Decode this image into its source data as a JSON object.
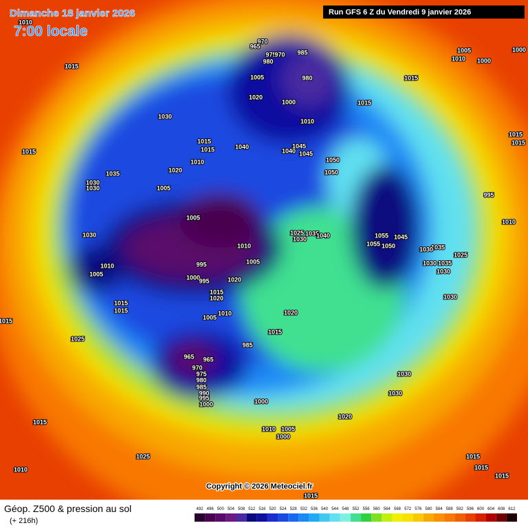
{
  "header": {
    "date": "Dimanche 18 janvier 2026",
    "time": "7:00 locale",
    "run": "Run GFS 6 Z du Vendredi 9 janvier 2026"
  },
  "map": {
    "copyright": "Copyright © 2026 Meteociel.fr",
    "isobar_labels": [
      "1010",
      "1015",
      "1030",
      "1015",
      "1035",
      "1030",
      "1030",
      "1020",
      "1005",
      "1015",
      "1015",
      "1010",
      "970",
      "965",
      "975",
      "970",
      "980",
      "985",
      "1005",
      "980",
      "1020",
      "1000",
      "1010",
      "1015",
      "1015",
      "1005",
      "1010",
      "1000",
      "1000",
      "1040",
      "1040",
      "1045",
      "1045",
      "1050",
      "1050",
      "1005",
      "1010",
      "1005",
      "995",
      "1000",
      "995",
      "1020",
      "1015",
      "1020",
      "1030",
      "1010",
      "1005",
      "1015",
      "1015",
      "1005",
      "1010",
      "1020",
      "1015",
      "1025",
      "985",
      "965",
      "965",
      "970",
      "975",
      "980",
      "985",
      "990",
      "995",
      "1000",
      "1000",
      "1010",
      "1005",
      "1000",
      "1020",
      "1030",
      "1030",
      "1025",
      "1015",
      "1010",
      "1015",
      "1025",
      "1030",
      "1035",
      "1040",
      "1055",
      "1055",
      "1050",
      "1045",
      "1035",
      "1030",
      "1035",
      "1030",
      "1030",
      "1025",
      "1030",
      "995",
      "1010",
      "1015",
      "1015",
      "1015",
      "1015",
      "1015",
      "1015"
    ]
  },
  "legend": {
    "title": "Géop. Z500 & pression au sol",
    "lead_time": "(+ 216h)",
    "scale": [
      492,
      496,
      500,
      504,
      508,
      512,
      516,
      520,
      524,
      528,
      532,
      536,
      540,
      544,
      548,
      552,
      556,
      560,
      564,
      568,
      572,
      576,
      580,
      584,
      588,
      592,
      596,
      600,
      604,
      608,
      612
    ],
    "colors": [
      "#2a0030",
      "#4a0050",
      "#5a0a6a",
      "#6a1a80",
      "#4a2aa0",
      "#0a0a80",
      "#1010a0",
      "#1c2cd0",
      "#1a4ae0",
      "#1a6af0",
      "#1a8af5",
      "#20aaf5",
      "#40c8f0",
      "#60e0f0",
      "#80f0e0",
      "#40e090",
      "#30d040",
      "#80e020",
      "#c0f010",
      "#f0f000",
      "#f8e000",
      "#f8c800",
      "#f8a800",
      "#f89000",
      "#f87800",
      "#f06000",
      "#e84000",
      "#d82000",
      "#b00000",
      "#700000",
      "#200000"
    ]
  }
}
